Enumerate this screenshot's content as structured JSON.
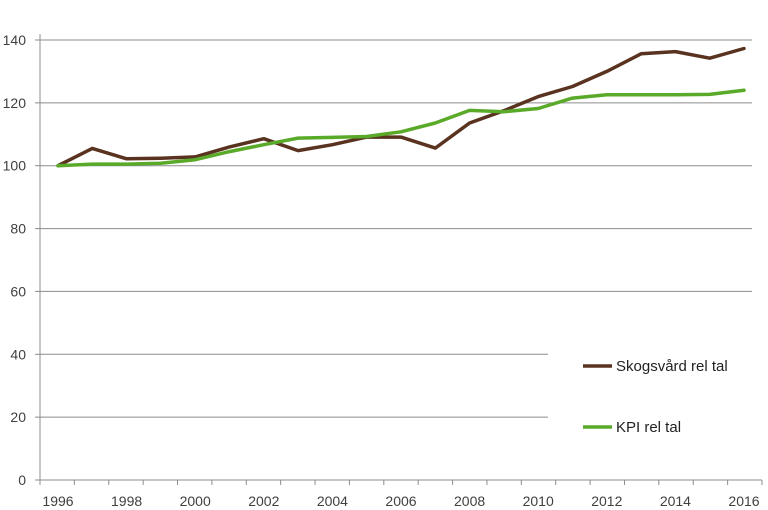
{
  "chart_data": {
    "type": "line",
    "x": [
      1996,
      1997,
      1998,
      1999,
      2000,
      2001,
      2002,
      2003,
      2004,
      2005,
      2006,
      2007,
      2008,
      2009,
      2010,
      2011,
      2012,
      2013,
      2014,
      2015,
      2016
    ],
    "series": [
      {
        "name": "Skogsvård rel tal",
        "color": "#5a3320",
        "values": [
          100,
          105.5,
          102.2,
          102.4,
          102.8,
          106,
          108.6,
          104.8,
          106.7,
          109.1,
          109.1,
          105.6,
          113.6,
          117.5,
          122,
          125.2,
          130,
          135.6,
          136.3,
          134.2,
          137.3
        ]
      },
      {
        "name": "KPI rel tal",
        "color": "#5aaa2a",
        "values": [
          100,
          100.5,
          100.5,
          100.8,
          101.9,
          104.5,
          106.7,
          108.8,
          109,
          109.3,
          110.8,
          113.6,
          117.6,
          117.2,
          118.2,
          121.5,
          122.6,
          122.6,
          122.6,
          122.7,
          124
        ]
      }
    ],
    "xticks": [
      "1996",
      "1998",
      "2000",
      "2002",
      "2004",
      "2006",
      "2008",
      "2010",
      "2012",
      "2014",
      "2016"
    ],
    "yticks": [
      "0",
      "20",
      "40",
      "60",
      "80",
      "100",
      "120",
      "140"
    ],
    "xlim": [
      1996,
      2016
    ],
    "ylim": [
      0,
      140
    ],
    "title": "",
    "xlabel": "",
    "ylabel": "",
    "grid": "horizontal",
    "legend_position": "lower-right"
  }
}
